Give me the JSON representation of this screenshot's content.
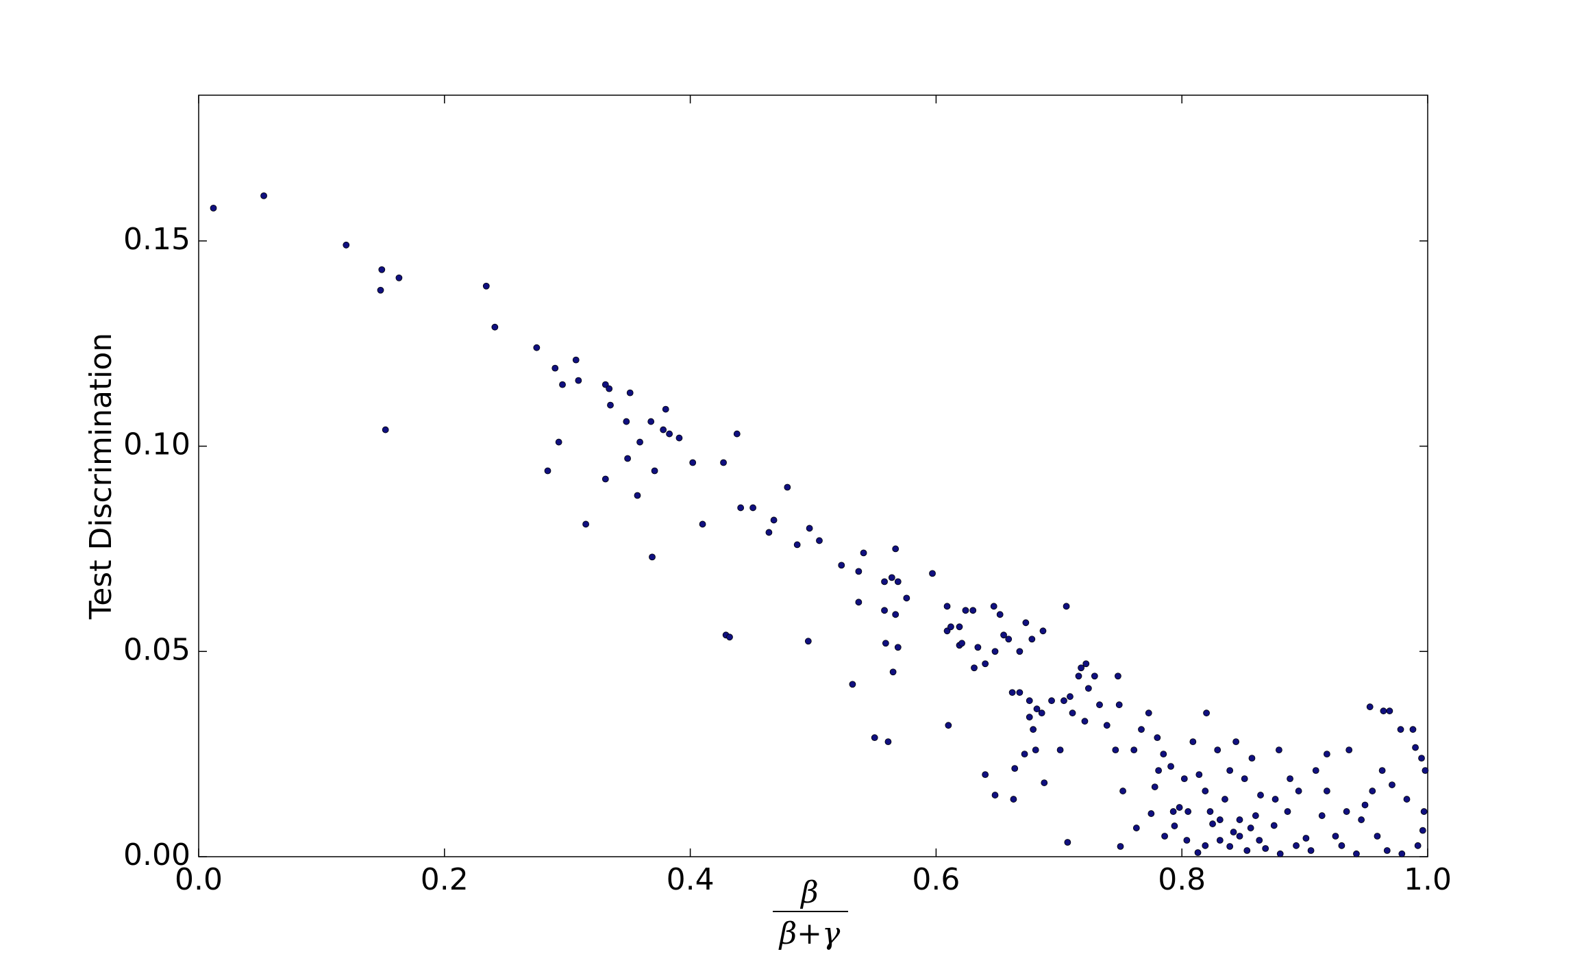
{
  "chart_data": {
    "type": "scatter",
    "ylabel": "Test Discrimination",
    "xlabel": {
      "numerator": "β",
      "denominator": "β+γ"
    },
    "color": "#10107f",
    "xlim": [
      0,
      1
    ],
    "ylim": [
      0,
      0.1855
    ],
    "xticks": [
      {
        "value": 0,
        "label": "0.0"
      },
      {
        "value": 0.2,
        "label": "0.2"
      },
      {
        "value": 0.4,
        "label": "0.4"
      },
      {
        "value": 0.6,
        "label": "0.6"
      },
      {
        "value": 0.8,
        "label": "0.8"
      },
      {
        "value": 1,
        "label": "1.0"
      }
    ],
    "yticks": [
      {
        "value": 0,
        "label": "0.00"
      },
      {
        "value": 0.05,
        "label": "0.05"
      },
      {
        "value": 0.1,
        "label": "0.10"
      },
      {
        "value": 0.15,
        "label": "0.15"
      }
    ],
    "grid": false,
    "x": [
      0.012,
      0.053,
      0.12,
      0.149,
      0.163,
      0.148,
      0.152,
      0.234,
      0.241,
      0.275,
      0.29,
      0.307,
      0.296,
      0.309,
      0.293,
      0.284,
      0.315,
      0.331,
      0.334,
      0.335,
      0.351,
      0.348,
      0.349,
      0.331,
      0.359,
      0.357,
      0.368,
      0.38,
      0.378,
      0.383,
      0.391,
      0.371,
      0.369,
      0.402,
      0.41,
      0.427,
      0.438,
      0.429,
      0.432,
      0.441,
      0.451,
      0.464,
      0.468,
      0.479,
      0.487,
      0.497,
      0.505,
      0.496,
      0.523,
      0.541,
      0.537,
      0.537,
      0.532,
      0.55,
      0.558,
      0.564,
      0.569,
      0.567,
      0.558,
      0.567,
      0.559,
      0.569,
      0.561,
      0.565,
      0.576,
      0.597,
      0.609,
      0.609,
      0.612,
      0.619,
      0.619,
      0.621,
      0.624,
      0.63,
      0.634,
      0.631,
      0.64,
      0.61,
      0.647,
      0.652,
      0.655,
      0.659,
      0.648,
      0.668,
      0.673,
      0.687,
      0.678,
      0.706,
      0.662,
      0.668,
      0.64,
      0.648,
      0.663,
      0.664,
      0.672,
      0.676,
      0.676,
      0.682,
      0.686,
      0.679,
      0.681,
      0.688,
      0.694,
      0.701,
      0.704,
      0.709,
      0.718,
      0.722,
      0.716,
      0.724,
      0.711,
      0.721,
      0.729,
      0.733,
      0.739,
      0.746,
      0.748,
      0.749,
      0.707,
      0.752,
      0.761,
      0.767,
      0.773,
      0.78,
      0.785,
      0.781,
      0.791,
      0.778,
      0.763,
      0.75,
      0.775,
      0.786,
      0.794,
      0.798,
      0.809,
      0.82,
      0.829,
      0.844,
      0.857,
      0.819,
      0.805,
      0.804,
      0.813,
      0.825,
      0.831,
      0.842,
      0.847,
      0.839,
      0.853,
      0.863,
      0.875,
      0.879,
      0.886,
      0.895,
      0.901,
      0.909,
      0.918,
      0.925,
      0.936,
      0.949,
      0.953,
      0.964,
      0.969,
      0.978,
      0.988,
      0.99,
      0.995,
      0.998,
      0.996,
      0.992,
      0.979,
      0.967,
      0.959,
      0.942,
      0.93,
      0.914,
      0.905,
      0.893,
      0.88,
      0.868,
      0.86,
      0.876,
      0.888,
      0.918,
      0.934,
      0.955,
      0.971,
      0.983,
      0.997,
      0.963,
      0.946,
      0.851,
      0.835,
      0.823,
      0.814,
      0.802,
      0.793,
      0.864,
      0.839,
      0.847,
      0.856,
      0.831,
      0.819
    ],
    "values": [
      0.158,
      0.161,
      0.149,
      0.143,
      0.141,
      0.138,
      0.104,
      0.139,
      0.129,
      0.124,
      0.119,
      0.121,
      0.115,
      0.116,
      0.101,
      0.094,
      0.081,
      0.115,
      0.114,
      0.11,
      0.113,
      0.106,
      0.097,
      0.092,
      0.101,
      0.088,
      0.106,
      0.109,
      0.104,
      0.103,
      0.102,
      0.094,
      0.073,
      0.096,
      0.081,
      0.096,
      0.103,
      0.054,
      0.0535,
      0.085,
      0.085,
      0.079,
      0.082,
      0.09,
      0.076,
      0.08,
      0.077,
      0.0525,
      0.071,
      0.074,
      0.0695,
      0.062,
      0.042,
      0.029,
      0.067,
      0.068,
      0.067,
      0.075,
      0.06,
      0.059,
      0.052,
      0.051,
      0.028,
      0.045,
      0.063,
      0.069,
      0.061,
      0.055,
      0.056,
      0.056,
      0.0515,
      0.052,
      0.06,
      0.06,
      0.051,
      0.046,
      0.047,
      0.032,
      0.061,
      0.059,
      0.054,
      0.053,
      0.05,
      0.05,
      0.057,
      0.055,
      0.053,
      0.061,
      0.04,
      0.04,
      0.02,
      0.015,
      0.014,
      0.0215,
      0.025,
      0.038,
      0.034,
      0.036,
      0.035,
      0.031,
      0.026,
      0.018,
      0.038,
      0.026,
      0.038,
      0.039,
      0.046,
      0.047,
      0.044,
      0.041,
      0.035,
      0.033,
      0.044,
      0.037,
      0.032,
      0.026,
      0.044,
      0.037,
      0.0035,
      0.016,
      0.026,
      0.031,
      0.035,
      0.029,
      0.025,
      0.021,
      0.022,
      0.017,
      0.007,
      0.0025,
      0.0105,
      0.005,
      0.0075,
      0.012,
      0.028,
      0.035,
      0.026,
      0.028,
      0.024,
      0.016,
      0.011,
      0.004,
      0.001,
      0.008,
      0.004,
      0.006,
      0.009,
      0.0025,
      0.0015,
      0.004,
      0.0076,
      0.026,
      0.011,
      0.016,
      0.0045,
      0.021,
      0.025,
      0.005,
      0.026,
      0.0126,
      0.0365,
      0.0355,
      0.0355,
      0.031,
      0.031,
      0.0266,
      0.024,
      0.021,
      0.0064,
      0.0027,
      0.0007,
      0.0015,
      0.005,
      0.0007,
      0.0027,
      0.01,
      0.0015,
      0.0027,
      0.0007,
      0.002,
      0.01,
      0.014,
      0.019,
      0.016,
      0.011,
      0.016,
      0.0175,
      0.014,
      0.011,
      0.021,
      0.009,
      0.019,
      0.014,
      0.011,
      0.02,
      0.019,
      0.011,
      0.015,
      0.021,
      0.005,
      0.007,
      0.009,
      0.0027
    ]
  }
}
